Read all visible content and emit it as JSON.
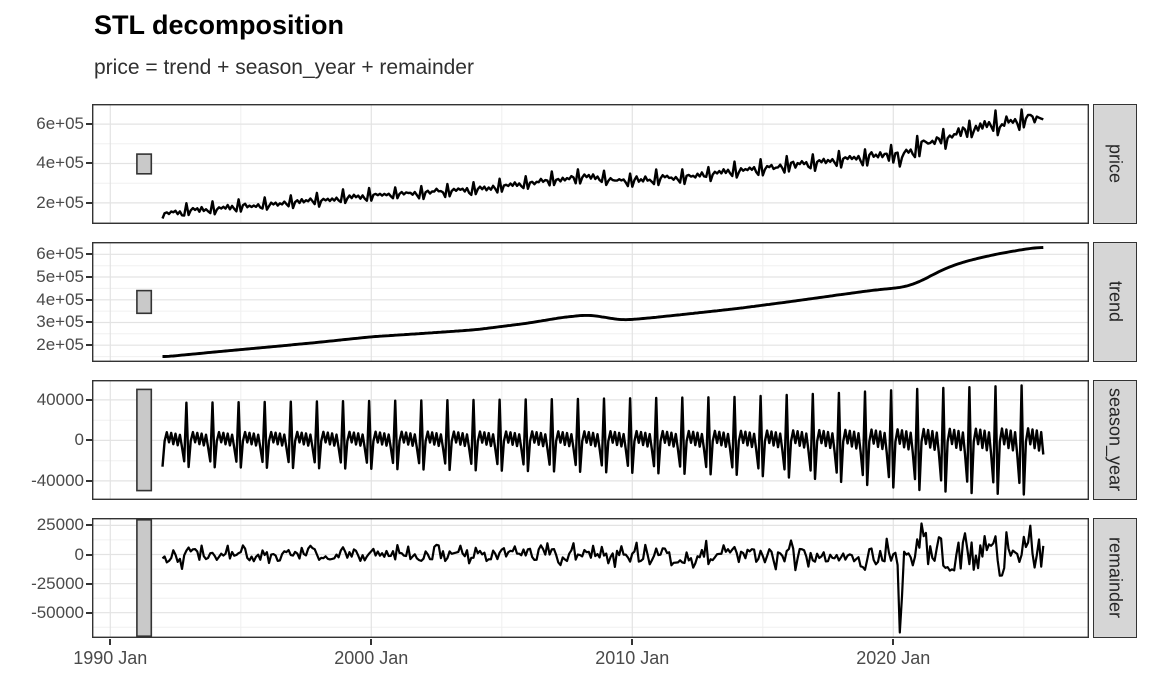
{
  "header": {
    "title": "STL decomposition",
    "subtitle": "price = trend + season_year + remainder"
  },
  "chart_data": {
    "type": "line",
    "title": "STL decomposition",
    "subtitle": "price = trend + season_year + remainder",
    "facets": [
      "price",
      "trend",
      "season_year",
      "remainder"
    ],
    "frequency": "monthly",
    "series_start_year": 1992.0,
    "series_end_year": 2025.75,
    "x_domain": [
      1989.3,
      2027.5
    ],
    "x_ticks": {
      "major": [
        [
          1990,
          "1990 Jan"
        ],
        [
          2000,
          "2000 Jan"
        ],
        [
          2010,
          "2010 Jan"
        ],
        [
          2020,
          "2020 Jan"
        ]
      ],
      "minor": [
        1995,
        2005,
        2015,
        2025
      ]
    },
    "scale_bar": {
      "value_height": 100000,
      "x_years": [
        1991.02,
        1991.57
      ]
    },
    "trend_anchors": [
      [
        1992.0,
        148000
      ],
      [
        1994.0,
        170000
      ],
      [
        1996.0,
        191000
      ],
      [
        1998.0,
        213000
      ],
      [
        2000.0,
        237000
      ],
      [
        2002.0,
        252000
      ],
      [
        2004.0,
        268000
      ],
      [
        2006.0,
        297000
      ],
      [
        2007.3,
        322000
      ],
      [
        2008.3,
        334000
      ],
      [
        2009.0,
        322000
      ],
      [
        2009.6,
        310000
      ],
      [
        2010.5,
        318000
      ],
      [
        2012.0,
        336000
      ],
      [
        2014.0,
        361000
      ],
      [
        2016.0,
        391000
      ],
      [
        2018.0,
        423000
      ],
      [
        2019.3,
        443000
      ],
      [
        2020.4,
        455000
      ],
      [
        2021.0,
        478000
      ],
      [
        2021.7,
        522000
      ],
      [
        2022.3,
        552000
      ],
      [
        2023.0,
        576000
      ],
      [
        2024.0,
        602000
      ],
      [
        2025.0,
        622000
      ],
      [
        2025.75,
        633000
      ]
    ],
    "season": {
      "profile_jan_to_dec": [
        -0.7,
        -0.02,
        0.22,
        -0.05,
        0.2,
        -0.1,
        0.18,
        -0.13,
        0.15,
        -0.18,
        -0.55,
        1.0
      ],
      "spike_envelope": [
        [
          1992,
          37000
        ],
        [
          2000,
          39000
        ],
        [
          2008,
          41000
        ],
        [
          2014,
          43000
        ],
        [
          2018,
          47000
        ],
        [
          2021,
          51000
        ],
        [
          2025.75,
          55000
        ]
      ],
      "trough_envelope": [
        [
          1992,
          26000
        ],
        [
          2000,
          28000
        ],
        [
          2008,
          31000
        ],
        [
          2014,
          34000
        ],
        [
          2017,
          38000
        ],
        [
          2019,
          44000
        ],
        [
          2021,
          49000
        ],
        [
          2023,
          52000
        ],
        [
          2025.75,
          54000
        ]
      ],
      "trough_norm": 0.7
    },
    "remainder": {
      "ar": 0.22,
      "seed": 42,
      "sigma_anchors": [
        [
          1992,
          3500
        ],
        [
          2004,
          3800
        ],
        [
          2007.5,
          4600
        ],
        [
          2010,
          4800
        ],
        [
          2013,
          4600
        ],
        [
          2016,
          5600
        ],
        [
          2019,
          6400
        ],
        [
          2020.7,
          8800
        ],
        [
          2022.5,
          9200
        ],
        [
          2024,
          7800
        ],
        [
          2025.75,
          7800
        ]
      ],
      "events": [
        [
          2008.75,
          -8000
        ],
        [
          2009.08,
          -13000
        ],
        [
          2009.33,
          -9000
        ],
        [
          2015.5,
          -9000
        ],
        [
          2019.92,
          13000
        ],
        [
          2020.25,
          -58000
        ],
        [
          2020.33,
          -26000
        ],
        [
          2020.5,
          8000
        ],
        [
          2020.92,
          16000
        ],
        [
          2021.08,
          29000
        ],
        [
          2021.25,
          11000
        ],
        [
          2021.58,
          -13000
        ],
        [
          2021.83,
          14000
        ],
        [
          2022.17,
          -15000
        ],
        [
          2022.42,
          9000
        ],
        [
          2023.08,
          -9000
        ],
        [
          2024.5,
          -8000
        ]
      ]
    },
    "panels": [
      {
        "id": "price",
        "label": "price",
        "lw": 2.4,
        "ticks": [
          [
            600000,
            "6e+05"
          ],
          [
            400000,
            "4e+05"
          ],
          [
            200000,
            "2e+05"
          ]
        ],
        "minor": [
          100000,
          300000,
          500000,
          700000
        ]
      },
      {
        "id": "trend",
        "label": "trend",
        "lw": 2.9,
        "ticks": [
          [
            600000,
            "6e+05"
          ],
          [
            500000,
            "5e+05"
          ],
          [
            400000,
            "4e+05"
          ],
          [
            300000,
            "3e+05"
          ],
          [
            200000,
            "2e+05"
          ]
        ],
        "minor": [
          150000,
          250000,
          350000,
          450000,
          550000,
          650000
        ]
      },
      {
        "id": "season_year",
        "label": "season_year",
        "lw": 2.4,
        "ticks": [
          [
            40000,
            "40000"
          ],
          [
            0,
            "0"
          ],
          [
            -40000,
            "-40000"
          ]
        ],
        "minor": [
          -60000,
          -20000,
          20000,
          60000
        ]
      },
      {
        "id": "remainder",
        "label": "remainder",
        "lw": 2.2,
        "ticks": [
          [
            25000,
            "25000"
          ],
          [
            0,
            "0"
          ],
          [
            -25000,
            "-25000"
          ],
          [
            -50000,
            "-50000"
          ]
        ],
        "minor": [
          -62500,
          -37500,
          -12500,
          12500,
          37500
        ]
      }
    ],
    "colors": {
      "line": "#000000",
      "strip_fill": "#d6d6d6",
      "strip_border": "#333333",
      "strip_text": "#262626",
      "panel_border": "#333333",
      "grid_major": "#e3e3e3",
      "grid_minor": "#f0f0f0",
      "scale_bar_fill": "#c9c9c9",
      "axis_text": "#4a4a4a",
      "tick_mark": "#333333",
      "background": "#ffffff"
    }
  }
}
